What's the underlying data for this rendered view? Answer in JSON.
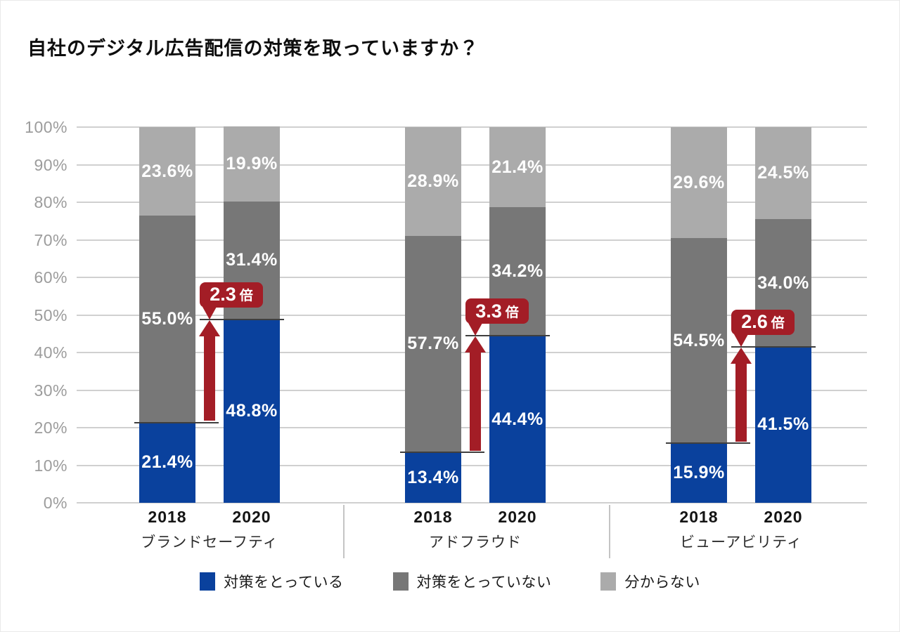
{
  "chart_data": {
    "type": "bar",
    "stacked": true,
    "title": "自社のデジタル広告配信の対策を取っていますか？",
    "ylim": [
      0,
      100
    ],
    "y_ticks": [
      {
        "value": 0,
        "label": "0%"
      },
      {
        "value": 10,
        "label": "10%"
      },
      {
        "value": 20,
        "label": "20%"
      },
      {
        "value": 30,
        "label": "30%"
      },
      {
        "value": 40,
        "label": "40%"
      },
      {
        "value": 50,
        "label": "50%"
      },
      {
        "value": 60,
        "label": "60%"
      },
      {
        "value": 70,
        "label": "70%"
      },
      {
        "value": 80,
        "label": "80%"
      },
      {
        "value": 90,
        "label": "90%"
      },
      {
        "value": 100,
        "label": "100%"
      }
    ],
    "series_names": [
      "対策をとっている",
      "対策をとっていない",
      "分からない"
    ],
    "colors": {
      "taking_measures": "#0a419d",
      "not_taking_measures": "#777777",
      "dont_know": "#ababab",
      "annotation_red": "#a31d26"
    },
    "groups": [
      {
        "label": "ブランドセーフティ",
        "bars": [
          {
            "year": "2018",
            "values": [
              21.4,
              55.0,
              23.6
            ],
            "labels": [
              "21.4%",
              "55.0%",
              "23.6%"
            ]
          },
          {
            "year": "2020",
            "values": [
              48.8,
              31.4,
              19.9
            ],
            "labels": [
              "48.8%",
              "31.4%",
              "19.9%"
            ]
          }
        ],
        "multiplier": {
          "value": "2.3",
          "unit": "倍"
        }
      },
      {
        "label": "アドフラウド",
        "bars": [
          {
            "year": "2018",
            "values": [
              13.4,
              57.7,
              28.9
            ],
            "labels": [
              "13.4%",
              "57.7%",
              "28.9%"
            ]
          },
          {
            "year": "2020",
            "values": [
              44.4,
              34.2,
              21.4
            ],
            "labels": [
              "44.4%",
              "34.2%",
              "21.4%"
            ]
          }
        ],
        "multiplier": {
          "value": "3.3",
          "unit": "倍"
        }
      },
      {
        "label": "ビューアビリティ",
        "bars": [
          {
            "year": "2018",
            "values": [
              15.9,
              54.5,
              29.6
            ],
            "labels": [
              "15.9%",
              "54.5%",
              "29.6%"
            ]
          },
          {
            "year": "2020",
            "values": [
              41.5,
              34.0,
              24.5
            ],
            "labels": [
              "41.5%",
              "34.0%",
              "24.5%"
            ]
          }
        ],
        "multiplier": {
          "value": "2.6",
          "unit": "倍"
        }
      }
    ],
    "legend": [
      {
        "label": "対策をとっている",
        "color": "#0a419d"
      },
      {
        "label": "対策をとっていない",
        "color": "#777777"
      },
      {
        "label": "分からない",
        "color": "#ababab"
      }
    ],
    "legend_position": "bottom",
    "grid": true
  }
}
